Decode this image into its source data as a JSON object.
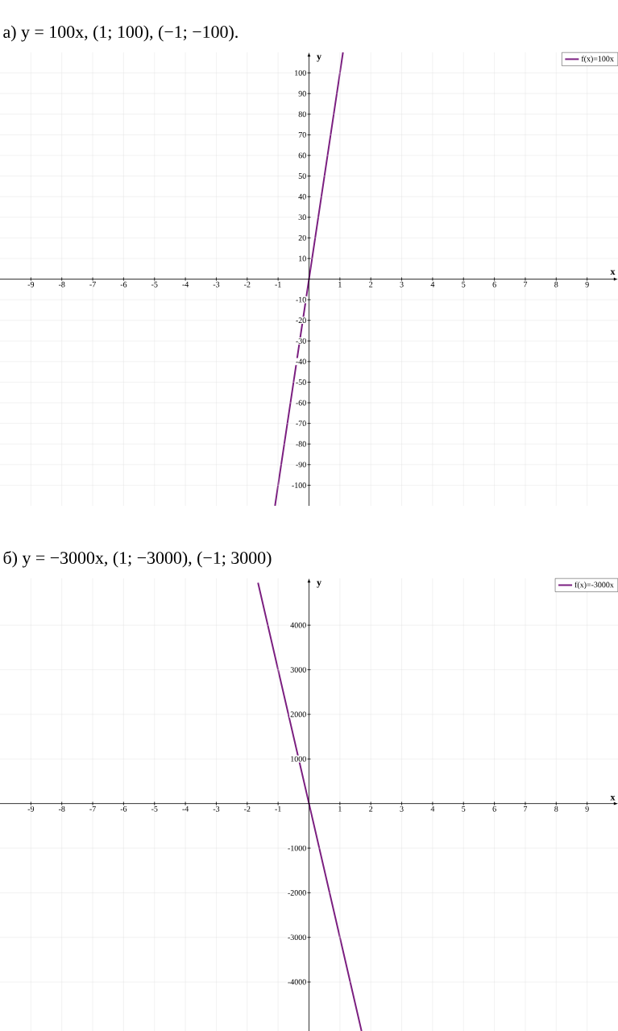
{
  "chart_data": [
    {
      "type": "line",
      "title": "а) y = 100x,      (1; 100), (−1; −100).",
      "xlabel": "x",
      "ylabel": "y",
      "series": [
        {
          "name": "f(x)=100x",
          "color": "#7b1f80",
          "x": [
            -1.1,
            -1,
            0,
            1,
            1.1
          ],
          "values": [
            -110,
            -100,
            0,
            100,
            110
          ]
        }
      ],
      "xlim": [
        -10,
        10
      ],
      "ylim": [
        -110,
        110
      ],
      "xticks": [
        -9,
        -8,
        -7,
        -6,
        -5,
        -4,
        -3,
        -2,
        -1,
        1,
        2,
        3,
        4,
        5,
        6,
        7,
        8,
        9
      ],
      "yticks": [
        -100,
        -90,
        -80,
        -70,
        -60,
        -50,
        -40,
        -30,
        -20,
        -10,
        10,
        20,
        30,
        40,
        50,
        60,
        70,
        80,
        90,
        100
      ],
      "grid": true,
      "legend": "top right"
    },
    {
      "type": "line",
      "title": "б) y = −3000x,      (1; −3000), (−1; 3000)",
      "xlabel": "x",
      "ylabel": "y",
      "series": [
        {
          "name": "f(x)=-3000x",
          "color": "#7b1f80",
          "x": [
            -1.65,
            -1,
            0,
            1,
            1.7
          ],
          "values": [
            4950,
            3000,
            0,
            -3000,
            -5100
          ]
        }
      ],
      "xlim": [
        -10,
        10
      ],
      "ylim": [
        -5100,
        5050
      ],
      "xticks": [
        -9,
        -8,
        -7,
        -6,
        -5,
        -4,
        -3,
        -2,
        -1,
        1,
        2,
        3,
        4,
        5,
        6,
        7,
        8,
        9
      ],
      "yticks": [
        -4000,
        -3000,
        -2000,
        -1000,
        1000,
        2000,
        3000,
        4000
      ],
      "grid": true,
      "legend": "top right"
    }
  ]
}
